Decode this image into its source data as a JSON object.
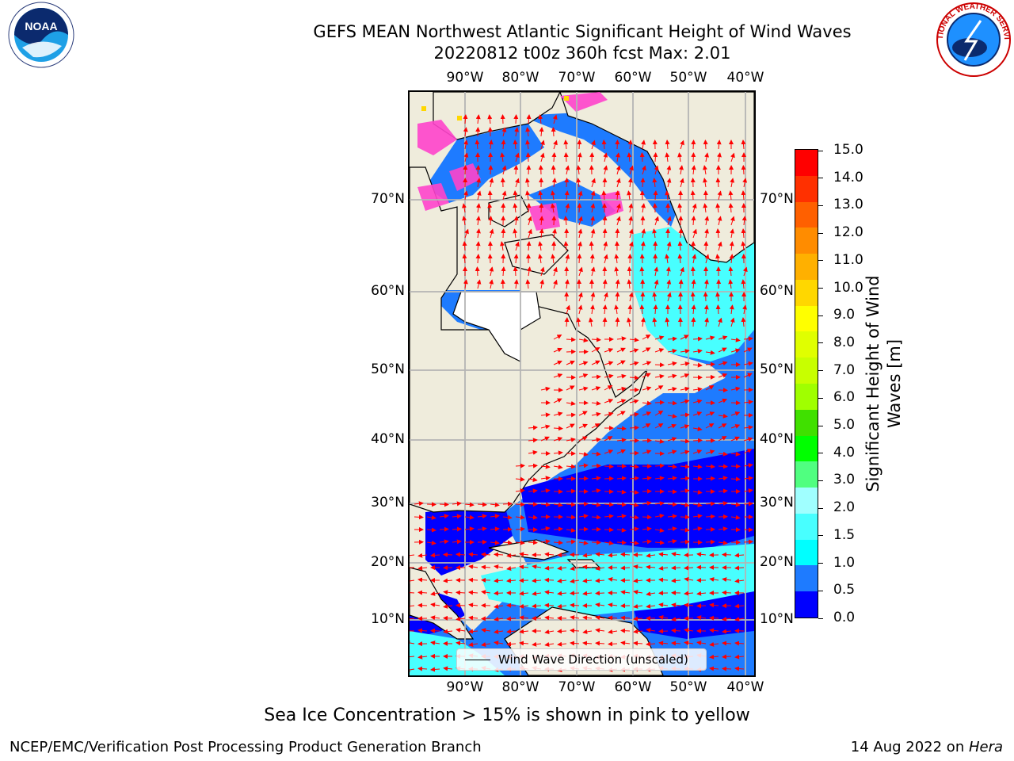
{
  "title": {
    "line1": "GEFS MEAN Northwest Atlantic Significant Height of Wind Waves",
    "line2": "20220812 t00z 360h fcst   Max: 2.01"
  },
  "map": {
    "lon_ticks_top": [
      "90°W",
      "80°W",
      "70°W",
      "60°W",
      "50°W",
      "40°W"
    ],
    "lon_ticks_bottom": [
      "90°W",
      "80°W",
      "70°W",
      "60°W",
      "50°W",
      "40°W"
    ],
    "lat_ticks_left": [
      "70°N",
      "60°N",
      "50°N",
      "40°N",
      "30°N",
      "20°N",
      "10°N"
    ],
    "lat_ticks_right": [
      "70°N",
      "60°N",
      "50°N",
      "40°N",
      "30°N",
      "20°N",
      "10°N"
    ],
    "legend_label": "Wind Wave Direction (unscaled)",
    "land_color": "#efecdc",
    "arrow_color": "#ff0000"
  },
  "colorbar": {
    "label_line1": "Significant Height of Wind",
    "label_line2": "Waves [m]",
    "tick_labels": [
      "0.0",
      "0.5",
      "1.0",
      "1.5",
      "2.0",
      "3.0",
      "4.0",
      "5.0",
      "6.0",
      "7.0",
      "8.0",
      "9.0",
      "10.0",
      "11.0",
      "12.0",
      "13.0",
      "14.0",
      "15.0"
    ],
    "colors": [
      "#0000ff",
      "#1e7bff",
      "#00ffff",
      "#48ffff",
      "#a0ffff",
      "#50ff80",
      "#00ff00",
      "#40e000",
      "#a0ff00",
      "#c8ff00",
      "#e0ff00",
      "#ffff00",
      "#ffd700",
      "#ffb000",
      "#ff8c00",
      "#ff6000",
      "#ff3000",
      "#ff0000"
    ]
  },
  "footnote": "Sea Ice Concentration > 15% is shown in pink to yellow",
  "footer": {
    "left": "NCEP/EMC/Verification Post Processing Product Generation Branch",
    "right_date": "14 Aug 2022 on ",
    "right_host": "Hera"
  },
  "logos": {
    "noaa_text": "NOAA",
    "nws_text": "NATIONAL WEATHER SERVICE"
  }
}
